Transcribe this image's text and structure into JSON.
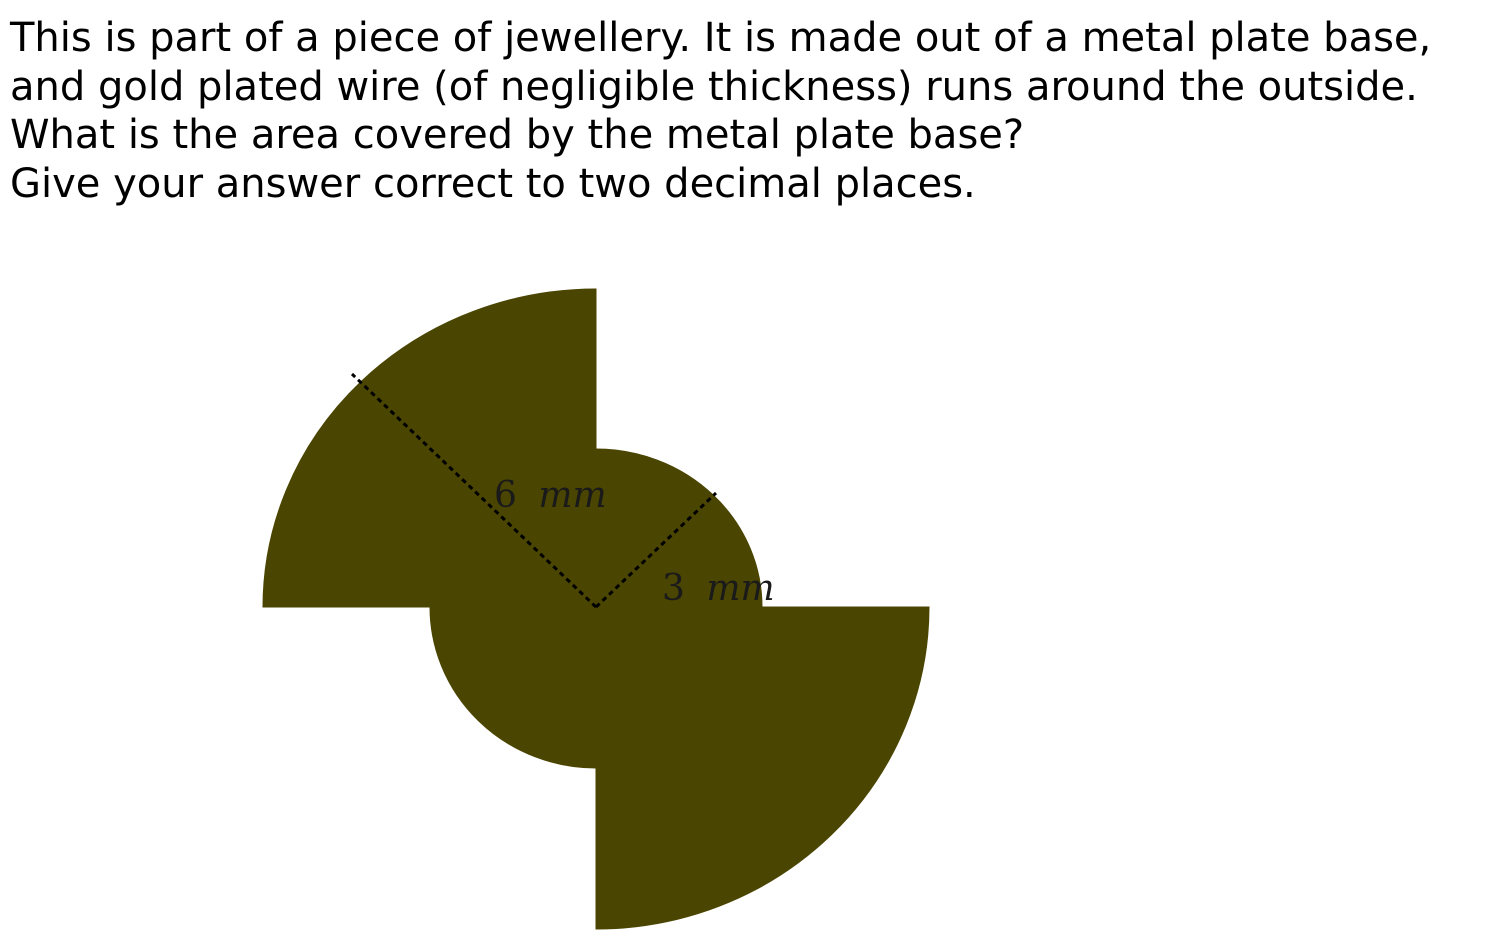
{
  "question": {
    "line1": "This is part of a piece of jewellery. It is made out of a metal plate base,",
    "line2": "and gold plated wire (of negligible thickness) runs around the outside.",
    "line3": "What is the area covered by the metal plate base?",
    "line4": "Give your answer correct to two decimal places."
  },
  "figure": {
    "fill_color": "#4a4500",
    "line_color": "#000000",
    "large_radius_label": {
      "value": "6",
      "unit": "mm"
    },
    "small_radius_label": {
      "value": "3",
      "unit": "mm"
    }
  }
}
